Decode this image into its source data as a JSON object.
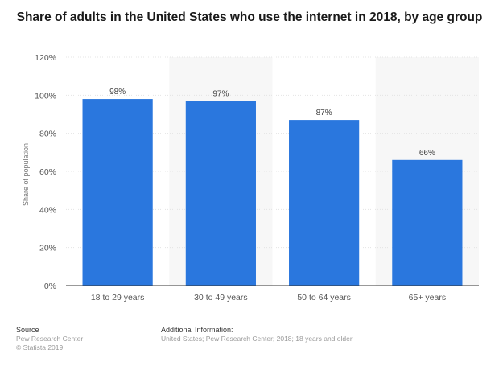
{
  "title": "Share of adults in the United States who use the internet in 2018, by age group",
  "footer": {
    "source_heading": "Source",
    "source_lines": [
      "Pew Research Center",
      "© Statista 2019"
    ],
    "info_heading": "Additional Information:",
    "info_text": "United States; Pew Research Center; 2018; 18 years and older"
  },
  "colors": {
    "bar": "#2a77de",
    "band": "#f7f7f7",
    "grid": "#e4e4e4",
    "axis": "#333333"
  },
  "chart_data": {
    "type": "bar",
    "title": "Share of adults in the United States who use the internet in 2018, by age group",
    "xlabel": "",
    "ylabel": "Share of population",
    "categories": [
      "18 to 29 years",
      "30 to 49 years",
      "50 to 64 years",
      "65+ years"
    ],
    "values": [
      98,
      97,
      87,
      66
    ],
    "value_labels": [
      "98%",
      "97%",
      "87%",
      "66%"
    ],
    "ylim": [
      0,
      120
    ],
    "yticks": [
      "0%",
      "20%",
      "40%",
      "60%",
      "80%",
      "100%",
      "120%"
    ],
    "grid": true,
    "legend": "none"
  }
}
